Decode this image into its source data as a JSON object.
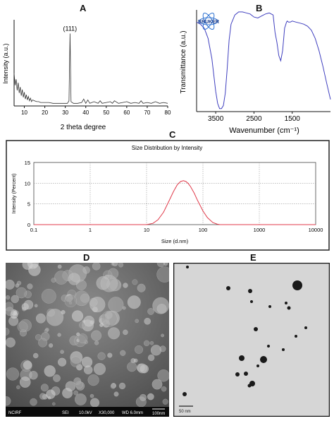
{
  "panels": {
    "A": "A",
    "B": "B",
    "C": "C",
    "D": "D",
    "E": "E"
  },
  "chart_data": [
    {
      "panel": "A",
      "type": "line",
      "title": "",
      "xlabel": "2 theta degree",
      "ylabel": "Intensity (a.u.)",
      "xlim": [
        5,
        80
      ],
      "xticks": [
        10,
        20,
        30,
        40,
        50,
        60,
        70,
        80
      ],
      "annotations": [
        {
          "text": "(111)",
          "x": 32.3,
          "y": 0.84
        }
      ],
      "series": [
        {
          "x": [
            5,
            5.5,
            6,
            6.5,
            7,
            7.5,
            8,
            8.5,
            9,
            9.5,
            10,
            10.5,
            11,
            11.5,
            12,
            12.5,
            13,
            13.5,
            14,
            15,
            16,
            17,
            18,
            20,
            22,
            24,
            26,
            28,
            30,
            31,
            31.8,
            32.3,
            32.8,
            34,
            36,
            38,
            39,
            40,
            41,
            42,
            44,
            46,
            47,
            48,
            50,
            52,
            53,
            54,
            56,
            58,
            60,
            62,
            64,
            66,
            67,
            68,
            70,
            72,
            74,
            76,
            78,
            80
          ],
          "y": [
            0.38,
            0.24,
            0.31,
            0.18,
            0.27,
            0.15,
            0.22,
            0.12,
            0.19,
            0.1,
            0.16,
            0.08,
            0.13,
            0.07,
            0.11,
            0.06,
            0.09,
            0.05,
            0.07,
            0.06,
            0.05,
            0.05,
            0.04,
            0.04,
            0.04,
            0.03,
            0.03,
            0.03,
            0.03,
            0.03,
            0.06,
            0.84,
            0.05,
            0.03,
            0.03,
            0.04,
            0.08,
            0.03,
            0.07,
            0.03,
            0.05,
            0.03,
            0.06,
            0.03,
            0.04,
            0.05,
            0.03,
            0.06,
            0.03,
            0.04,
            0.05,
            0.03,
            0.04,
            0.03,
            0.06,
            0.03,
            0.04,
            0.03,
            0.05,
            0.03,
            0.04,
            0.03
          ]
        }
      ],
      "color": "#333333"
    },
    {
      "panel": "B",
      "type": "line",
      "title": "",
      "xlabel": "Wavenumber (cm⁻¹)",
      "ylabel": "Transmittance (a.u.)",
      "xlim": [
        4000,
        500
      ],
      "xticks": [
        3500,
        2500,
        1500
      ],
      "logo": "BRUKER",
      "series": [
        {
          "x": [
            4000,
            3900,
            3800,
            3700,
            3600,
            3500,
            3450,
            3400,
            3350,
            3300,
            3250,
            3200,
            3150,
            3100,
            3000,
            2900,
            2800,
            2700,
            2600,
            2500,
            2400,
            2300,
            2200,
            2100,
            2000,
            1950,
            1900,
            1850,
            1800,
            1750,
            1700,
            1650,
            1630,
            1600,
            1550,
            1500,
            1400,
            1300,
            1200,
            1100,
            1000,
            900,
            800,
            700,
            600,
            500
          ],
          "y": [
            0.88,
            0.86,
            0.82,
            0.72,
            0.52,
            0.2,
            0.08,
            0.03,
            0.03,
            0.06,
            0.18,
            0.42,
            0.7,
            0.86,
            0.95,
            0.98,
            0.98,
            0.97,
            0.96,
            0.93,
            0.92,
            0.94,
            0.96,
            0.97,
            0.95,
            0.78,
            0.68,
            0.55,
            0.5,
            0.6,
            0.82,
            0.88,
            0.89,
            0.88,
            0.88,
            0.89,
            0.88,
            0.87,
            0.86,
            0.84,
            0.8,
            0.72,
            0.6,
            0.45,
            0.28,
            0.12
          ]
        }
      ],
      "color": "#3f3fbf"
    },
    {
      "panel": "C",
      "type": "line",
      "title": "Size Distribution by Intensity",
      "xlabel": "Size (d.nm)",
      "ylabel": "Intensity (Percent)",
      "xscale": "log",
      "xlim": [
        0.1,
        10000
      ],
      "ylim": [
        0,
        15
      ],
      "xticks": [
        "0.1",
        "1",
        "10",
        "100",
        "1000",
        "10000"
      ],
      "yticks": [
        "0",
        "5",
        "10",
        "15"
      ],
      "grid": true,
      "series": [
        {
          "x": [
            0.1,
            10,
            13,
            16,
            20,
            25,
            30,
            35,
            40,
            45,
            50,
            55,
            60,
            70,
            80,
            100,
            120,
            150,
            180,
            200,
            300,
            1000,
            10000
          ],
          "y": [
            0,
            0,
            0.3,
            1.2,
            3.0,
            5.7,
            8.0,
            9.6,
            10.4,
            10.6,
            10.4,
            9.9,
            9.2,
            7.6,
            5.9,
            3.3,
            1.7,
            0.5,
            0.1,
            0,
            0,
            0,
            0
          ]
        }
      ],
      "color": "#e03a4a"
    }
  ],
  "images": {
    "D": {
      "info_bar": {
        "left": "NCIRF",
        "sei": "SEI",
        "kv": "10.0kV",
        "mag": "X30,000",
        "wd": "WD 6.0mm",
        "scale": "100nm"
      }
    },
    "E": {
      "scale": "50 nm"
    }
  }
}
